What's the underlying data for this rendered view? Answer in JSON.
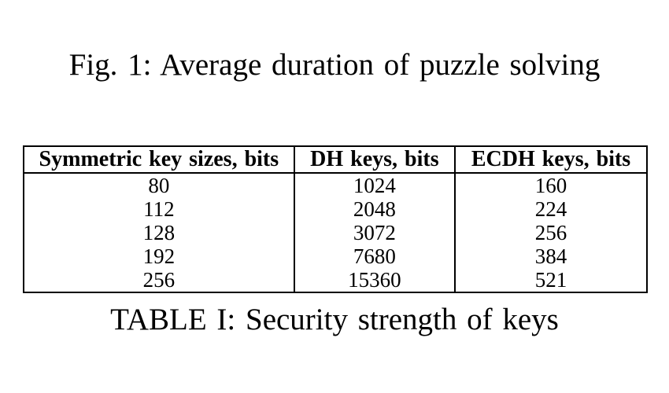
{
  "colors": {
    "background": "#ffffff",
    "text": "#000000",
    "table_border": "#000000"
  },
  "figure": {
    "caption": "Fig. 1: Average duration of puzzle solving"
  },
  "table": {
    "caption": "TABLE I: Security strength of keys",
    "headers": [
      "Symmetric key sizes, bits",
      "DH keys, bits",
      "ECDH keys, bits"
    ],
    "rows": [
      [
        "80",
        "1024",
        "160"
      ],
      [
        "112",
        "2048",
        "224"
      ],
      [
        "128",
        "3072",
        "256"
      ],
      [
        "192",
        "7680",
        "384"
      ],
      [
        "256",
        "15360",
        "521"
      ]
    ]
  }
}
